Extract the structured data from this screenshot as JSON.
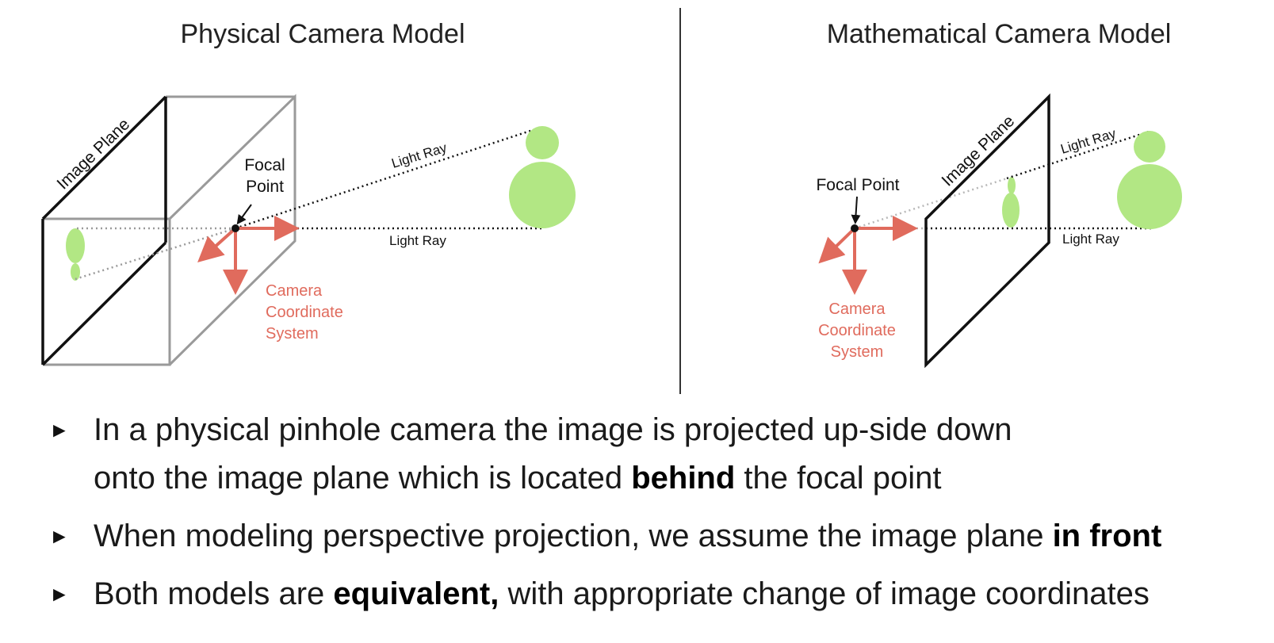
{
  "left_panel": {
    "title": "Physical Camera Model",
    "image_plane_label": "Image Plane",
    "focal_label_line1": "Focal",
    "focal_label_line2": "Point",
    "ray_label_top": "Light Ray",
    "ray_label_bottom": "Light Ray",
    "coord_line1": "Camera",
    "coord_line2": "Coordinate",
    "coord_line3": "System"
  },
  "right_panel": {
    "title": "Mathematical Camera Model",
    "image_plane_label": "Image Plane",
    "focal_label": "Focal Point",
    "ray_label_top": "Light Ray",
    "ray_label_bottom": "Light Ray",
    "coord_line1": "Camera",
    "coord_line2": "Coordinate",
    "coord_line3": "System"
  },
  "colors": {
    "object_green": "#b2e784",
    "axis_red": "#e06b5d",
    "box_gray": "#9a9a9a",
    "divider": "#333333"
  },
  "bullets": [
    {
      "marker": "►",
      "line1": "In a physical pinhole camera the image is projected up-side down",
      "line2_pre": "onto the image plane which is located ",
      "line2_bold": "behind",
      "line2_post": " the focal point"
    },
    {
      "marker": "►",
      "pre": "When modeling perspective projection, we assume the image plane ",
      "bold": "in front",
      "post": ""
    },
    {
      "marker": "►",
      "pre": "Both models are ",
      "bold": "equivalent,",
      "post": " with appropriate change of image coordinates"
    }
  ]
}
